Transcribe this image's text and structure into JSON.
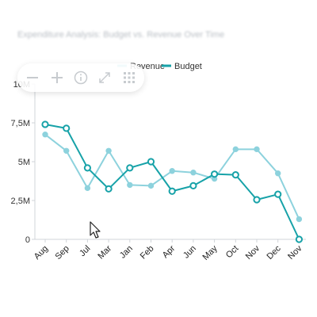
{
  "chart_title": "Expenditure Analysis: Budget vs. Revenue Over Time",
  "chart_data": {
    "type": "line",
    "categories": [
      "Aug",
      "Sep",
      "Jul",
      "Mar",
      "Jan",
      "Feb",
      "Apr",
      "Jun",
      "May",
      "Oct",
      "Nov",
      "Dec",
      "Nov"
    ],
    "series": [
      {
        "name": "Revenue",
        "values": [
          6.75,
          5.7,
          3.3,
          5.7,
          3.5,
          3.45,
          4.4,
          4.3,
          3.9,
          5.8,
          5.8,
          4.25,
          1.3
        ]
      },
      {
        "name": "Budget",
        "values": [
          7.4,
          7.15,
          4.6,
          3.25,
          4.6,
          5.0,
          3.1,
          3.45,
          4.2,
          4.15,
          2.55,
          2.9,
          0.0
        ]
      }
    ],
    "y_unit": "M",
    "ylim": [
      0,
      10
    ],
    "yticks": [
      "0",
      "2,5M",
      "5M",
      "7,5M",
      "10M"
    ],
    "ytick_values": [
      0,
      2.5,
      5,
      7.5,
      10
    ],
    "legend_position": "top",
    "grid": false,
    "colors": {
      "Revenue": "#8dd2dd",
      "Budget": "#17a2a8"
    }
  },
  "toolbar": {
    "buttons": [
      {
        "name": "zoom-out-icon",
        "glyph": "−"
      },
      {
        "name": "zoom-in-icon",
        "glyph": "+"
      },
      {
        "name": "info-icon",
        "glyph": "i"
      },
      {
        "name": "fullscreen-icon",
        "glyph": "⤢"
      },
      {
        "name": "grid-icon",
        "glyph": "grid"
      }
    ]
  }
}
